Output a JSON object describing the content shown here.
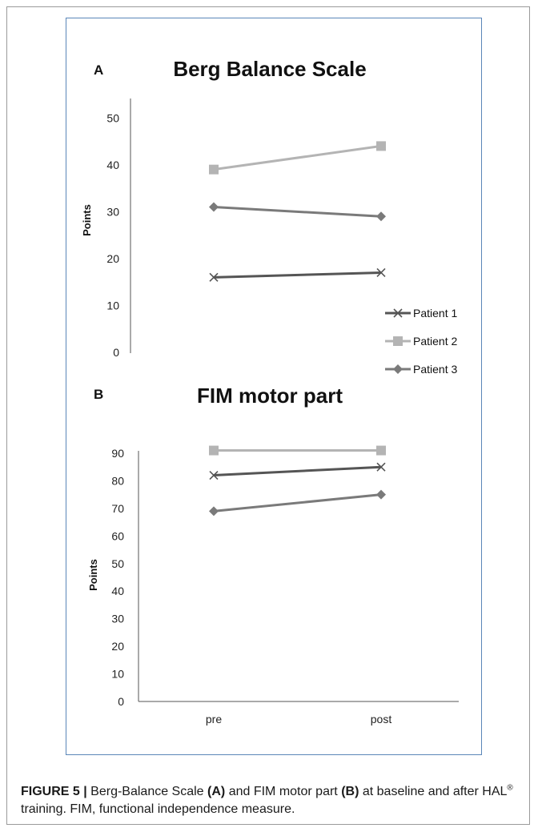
{
  "chart_data": [
    {
      "type": "line",
      "panel_letter": "A",
      "title": "Berg Balance Scale",
      "ylabel": "Points",
      "ylim": [
        0,
        55
      ],
      "y_ticks": [
        "0",
        "10",
        "20",
        "30",
        "40",
        "50"
      ],
      "categories": [
        "pre",
        "post"
      ],
      "series": [
        {
          "name": "Patient 1",
          "values": [
            16,
            17
          ],
          "color": "#555555",
          "marker": "x"
        },
        {
          "name": "Patient 2",
          "values": [
            39,
            44
          ],
          "color": "#b4b4b4",
          "marker": "square"
        },
        {
          "name": "Patient 3",
          "values": [
            31,
            29
          ],
          "color": "#7a7a7a",
          "marker": "diamond"
        }
      ],
      "legend": "right"
    },
    {
      "type": "line",
      "panel_letter": "B",
      "title": "FIM motor part",
      "ylabel": "Points",
      "ylim": [
        0,
        90
      ],
      "y_ticks": [
        "0",
        "10",
        "20",
        "30",
        "40",
        "50",
        "60",
        "70",
        "80",
        "90"
      ],
      "categories": [
        "pre",
        "post"
      ],
      "series": [
        {
          "name": "Patient 1",
          "values": [
            82,
            85
          ],
          "color": "#555555",
          "marker": "x"
        },
        {
          "name": "Patient 2",
          "values": [
            91,
            91
          ],
          "color": "#b4b4b4",
          "marker": "square"
        },
        {
          "name": "Patient 3",
          "values": [
            69,
            75
          ],
          "color": "#7a7a7a",
          "marker": "diamond"
        }
      ]
    }
  ],
  "caption": {
    "label": "FIGURE 5 |",
    "t1": " Berg-Balance Scale ",
    "a": "(A)",
    "t2": " and FIM motor part ",
    "b": "(B)",
    "t3": " at baseline and after HAL",
    "reg": "®",
    "t4": " training. FIM, functional independence measure."
  }
}
